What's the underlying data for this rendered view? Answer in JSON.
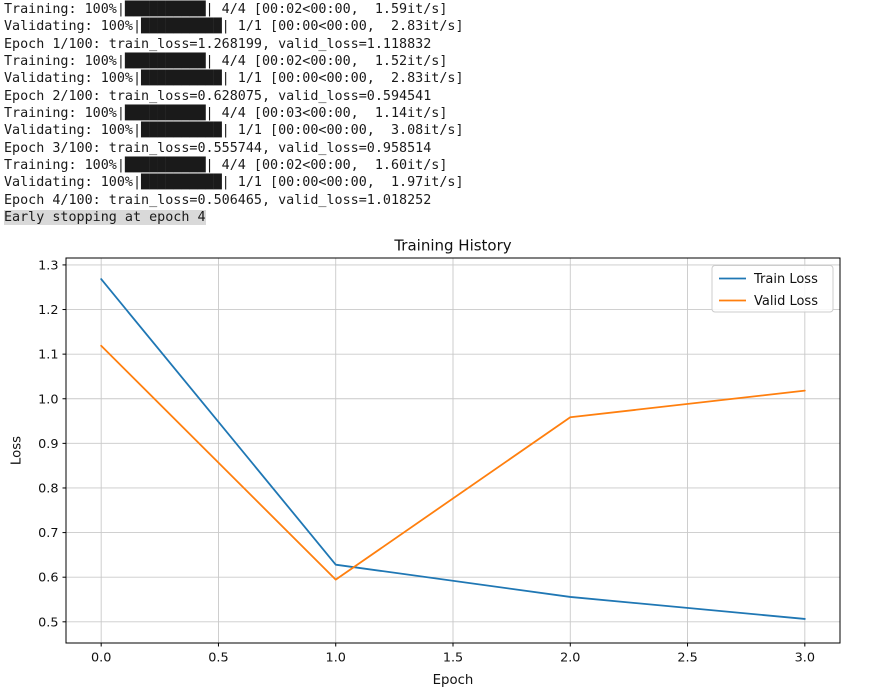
{
  "terminal": {
    "lines": [
      {
        "text": "Training: 100%|██████████| 4/4 [00:02<00:00,  1.59it/s]",
        "highlight": false
      },
      {
        "text": "Validating: 100%|██████████| 1/1 [00:00<00:00,  2.83it/s]",
        "highlight": false
      },
      {
        "text": "Epoch 1/100: train_loss=1.268199, valid_loss=1.118832",
        "highlight": false
      },
      {
        "text": "Training: 100%|██████████| 4/4 [00:02<00:00,  1.52it/s]",
        "highlight": false
      },
      {
        "text": "Validating: 100%|██████████| 1/1 [00:00<00:00,  2.83it/s]",
        "highlight": false
      },
      {
        "text": "Epoch 2/100: train_loss=0.628075, valid_loss=0.594541",
        "highlight": false
      },
      {
        "text": "Training: 100%|██████████| 4/4 [00:03<00:00,  1.14it/s]",
        "highlight": false
      },
      {
        "text": "Validating: 100%|██████████| 1/1 [00:00<00:00,  3.08it/s]",
        "highlight": false
      },
      {
        "text": "Epoch 3/100: train_loss=0.555744, valid_loss=0.958514",
        "highlight": false
      },
      {
        "text": "Training: 100%|██████████| 4/4 [00:02<00:00,  1.60it/s]",
        "highlight": false
      },
      {
        "text": "Validating: 100%|██████████| 1/1 [00:00<00:00,  1.97it/s]",
        "highlight": false
      },
      {
        "text": "Epoch 4/100: train_loss=0.506465, valid_loss=1.018252",
        "highlight": false
      },
      {
        "text": "Early stopping at epoch 4",
        "highlight": true
      }
    ]
  },
  "chart_data": {
    "type": "line",
    "title": "Training History",
    "xlabel": "Epoch",
    "ylabel": "Loss",
    "x": [
      0,
      1,
      2,
      3
    ],
    "series": [
      {
        "name": "Train Loss",
        "color": "#1f77b4",
        "values": [
          1.268199,
          0.628075,
          0.555744,
          0.506465
        ]
      },
      {
        "name": "Valid Loss",
        "color": "#ff7f0e",
        "values": [
          1.118832,
          0.594541,
          0.958514,
          1.018252
        ]
      }
    ],
    "xticks": [
      0.0,
      0.5,
      1.0,
      1.5,
      2.0,
      2.5,
      3.0
    ],
    "xtick_labels": [
      "0.0",
      "0.5",
      "1.0",
      "1.5",
      "2.0",
      "2.5",
      "3.0"
    ],
    "yticks": [
      0.5,
      0.6,
      0.7,
      0.8,
      0.9,
      1.0,
      1.1,
      1.2,
      1.3
    ],
    "ytick_labels": [
      "0.5",
      "0.6",
      "0.7",
      "0.8",
      "0.9",
      "1.0",
      "1.1",
      "1.2",
      "1.3"
    ],
    "xlim": [
      -0.15,
      3.15
    ],
    "ylim": [
      0.4525,
      1.3155
    ],
    "grid": true,
    "grid_color": "#c9c9c9",
    "spine_color": "#000000",
    "legend": {
      "position": "upper right",
      "border_color": "#cccccc",
      "entries": [
        "Train Loss",
        "Valid Loss"
      ]
    },
    "highlight_bg": "#d9d9d9"
  }
}
